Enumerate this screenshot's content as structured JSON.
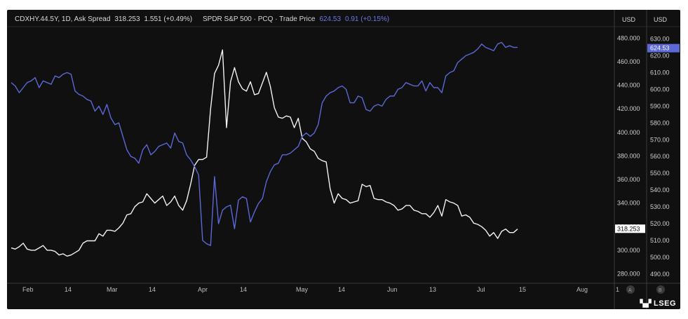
{
  "header": {
    "series1_title": "CDXHY.44.5Y, 1D, Ask Spread",
    "series1_value": "318.253",
    "series1_change": "1.551 (+0.49%)",
    "series2_title": "SPDR S&P 500 · PCQ · Trade Price",
    "series2_value": "624.53",
    "series2_change": "0.91 (+0.15%)"
  },
  "axes": {
    "left_currency": "USD",
    "right_currency": "USD",
    "scale_a": "A",
    "scale_b": "B"
  },
  "brand": {
    "logo": "LSEG"
  },
  "colors": {
    "background": "#101010",
    "spread": "#f2f2f2",
    "spy": "#5b68d6",
    "grid": "#2a2a2a"
  },
  "chart_data": {
    "type": "line",
    "x_labels": [
      "Feb",
      "14",
      "Mar",
      "14",
      "Apr",
      "14",
      "May",
      "14",
      "Jun",
      "13",
      "Jul",
      "15",
      "Aug",
      "1"
    ],
    "y_left": {
      "range": [
        272,
        485
      ],
      "ticks": [
        "480.000",
        "460.000",
        "440.000",
        "420.000",
        "400.000",
        "380.000",
        "360.000",
        "340.000",
        "320.000",
        "300.000",
        "280.000"
      ]
    },
    "y_right": {
      "range": [
        484.5,
        634
      ],
      "ticks": [
        "630.00",
        "620.00",
        "610.00",
        "600.00",
        "590.00",
        "580.00",
        "570.00",
        "560.00",
        "550.00",
        "540.00",
        "530.00",
        "520.00",
        "510.00",
        "500.00",
        "490.00"
      ]
    },
    "last_value_labels": {
      "spread": "318.253",
      "spy": "624.53"
    },
    "series": [
      {
        "name": "CDXHY.44.5Y, 1D, Ask Spread",
        "axis": "left",
        "values": [
          302,
          301,
          303,
          306,
          301,
          300,
          300,
          302,
          304,
          300,
          300,
          299,
          296,
          297,
          295,
          296,
          298,
          300,
          306,
          308,
          308,
          308,
          314,
          312,
          317,
          317,
          316,
          319,
          323,
          330,
          331,
          337,
          340,
          341,
          348,
          344,
          340,
          343,
          346,
          338,
          341,
          346,
          338,
          334,
          342,
          356,
          372,
          377,
          377,
          379,
          420,
          450,
          457,
          470,
          404,
          443,
          455,
          443,
          437,
          435,
          443,
          432,
          433,
          442,
          451,
          439,
          421,
          413,
          412,
          414,
          413,
          404,
          412,
          395,
          392,
          386,
          384,
          378,
          376,
          375,
          352,
          340,
          348,
          344,
          343,
          340,
          341,
          342,
          356,
          354,
          355,
          344,
          343,
          343,
          341,
          340,
          338,
          334,
          335,
          338,
          338,
          334,
          333,
          331,
          331,
          328,
          332,
          338,
          329,
          343,
          341,
          340,
          338,
          329,
          330,
          328,
          323,
          322,
          320,
          317,
          312,
          315,
          310,
          316,
          318,
          315,
          315,
          318
        ],
        "labels": [
          "Feb",
          "14",
          "Mar",
          "14",
          "Apr",
          "14",
          "May",
          "14",
          "Jun",
          "13",
          "Jul",
          "15"
        ]
      },
      {
        "name": "SPDR S&P 500 · PCQ · Trade Price",
        "axis": "right",
        "values": [
          604,
          602,
          598,
          601,
          604,
          605,
          607,
          601,
          605,
          604,
          603,
          608,
          607,
          609,
          610,
          609,
          599,
          597,
          596,
          594,
          593,
          587,
          590,
          585,
          591,
          583,
          579,
          580,
          572,
          564,
          560,
          559,
          556,
          564,
          567,
          561,
          563,
          566,
          567,
          568,
          565,
          574,
          569,
          568,
          561,
          558,
          554,
          549,
          510,
          508,
          507,
          548,
          520,
          528,
          530,
          531,
          517,
          534,
          536,
          535,
          521,
          527,
          532,
          535,
          545,
          551,
          555,
          556,
          561,
          561,
          562,
          564,
          566,
          572,
          574,
          572,
          574,
          579,
          592,
          596,
          598,
          599,
          601,
          602,
          600,
          592,
          592,
          596,
          595,
          588,
          587,
          590,
          591,
          590,
          594,
          596,
          596,
          600,
          601,
          604,
          603,
          602,
          602,
          605,
          599,
          604,
          601,
          601,
          598,
          608,
          610,
          611,
          616,
          618,
          620,
          621,
          622,
          624,
          627,
          625,
          624,
          623,
          627,
          628,
          625,
          626,
          625,
          625
        ],
        "labels": [
          "Feb",
          "14",
          "Mar",
          "14",
          "Apr",
          "14",
          "May",
          "14",
          "Jun",
          "13",
          "Jul",
          "15"
        ]
      }
    ]
  }
}
